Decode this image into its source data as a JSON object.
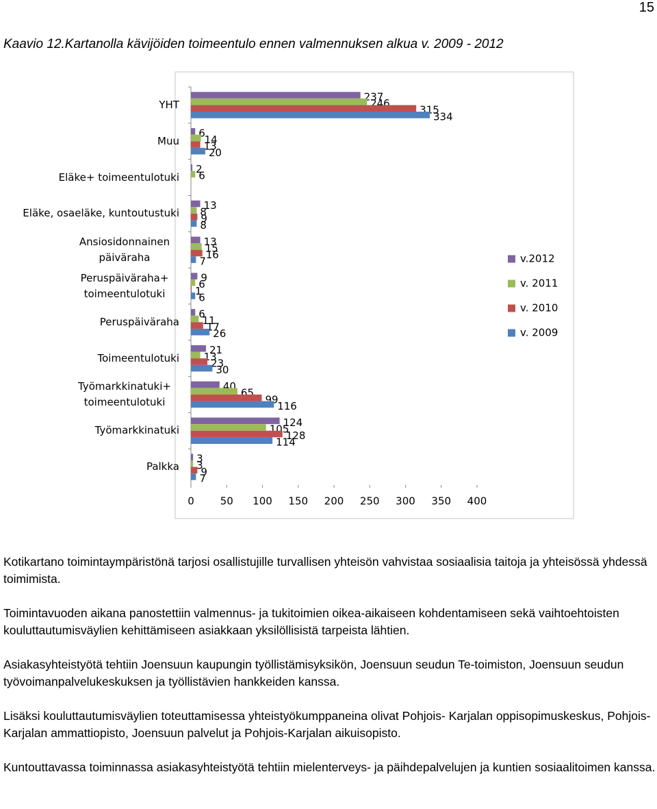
{
  "page_number": "15",
  "caption": "Kaavio 12.Kartanolla kävijöiden toimeentulo ennen valmennuksen alkua v. 2009 - 2012",
  "chart_data": {
    "type": "bar",
    "orientation": "horizontal",
    "categories": [
      "YHT",
      "Muu",
      "Eläke+ toimeentulotuki",
      "Eläke, osaeläke, kuntoutustuki",
      "Ansiosidonnainen päiväraha",
      "Peruspäiväraha+ toimeentulotuki",
      "Peruspäiväraha",
      "Toimeentulotuki",
      "Työmarkkinatuki+ toimeentulotuki",
      "Työmarkkinatuki",
      "Palkka"
    ],
    "series": [
      {
        "name": "v.2012",
        "color": "#8064a2",
        "values": [
          237,
          6,
          2,
          13,
          13,
          9,
          6,
          21,
          40,
          124,
          3
        ]
      },
      {
        "name": "v. 2011",
        "color": "#9bbb59",
        "values": [
          246,
          14,
          6,
          8,
          15,
          6,
          11,
          13,
          65,
          105,
          3
        ]
      },
      {
        "name": "v. 2010",
        "color": "#c0504d",
        "values": [
          315,
          13,
          null,
          9,
          16,
          1,
          17,
          23,
          99,
          128,
          9
        ]
      },
      {
        "name": "v. 2009",
        "color": "#4f81bd",
        "values": [
          334,
          20,
          null,
          8,
          7,
          6,
          26,
          30,
          116,
          114,
          7
        ]
      }
    ],
    "xlim": [
      0,
      400
    ],
    "xticks": [
      0,
      50,
      100,
      150,
      200,
      250,
      300,
      350,
      400
    ],
    "grid": false,
    "legend": "right",
    "data_labels": true
  },
  "paragraphs": [
    "Kotikartano toimintaympäristönä tarjosi osallistujille turvallisen yhteisön vahvistaa sosiaalisia taitoja ja yhteisössä yhdessä toimimista.",
    "Toimintavuoden aikana panostettiin valmennus- ja tukitoimien oikea-aikaiseen kohdentamiseen sekä vaihtoehtoisten kouluttautumisväylien kehittämiseen asiakkaan yksilöllisistä tarpeista lähtien.",
    "Asiakasyhteistyötä tehtiin Joensuun kaupungin työllistämisyksikön, Joensuun seudun Te-toimiston, Joensuun seudun työvoimanpalvelukeskuksen ja työllistävien hankkeiden kanssa.",
    "Lisäksi kouluttautumisväylien toteuttamisessa yhteistyökumppaneina olivat Pohjois- Karjalan oppisopimuskeskus, Pohjois- Karjalan ammattiopisto, Joensuun palvelut ja Pohjois-Karjalan aikuisopisto.",
    "Kuntouttavassa toiminnassa asiakasyhteistyötä tehtiin mielenterveys- ja päihdepalvelujen ja kuntien sosiaalitoimen kanssa."
  ]
}
